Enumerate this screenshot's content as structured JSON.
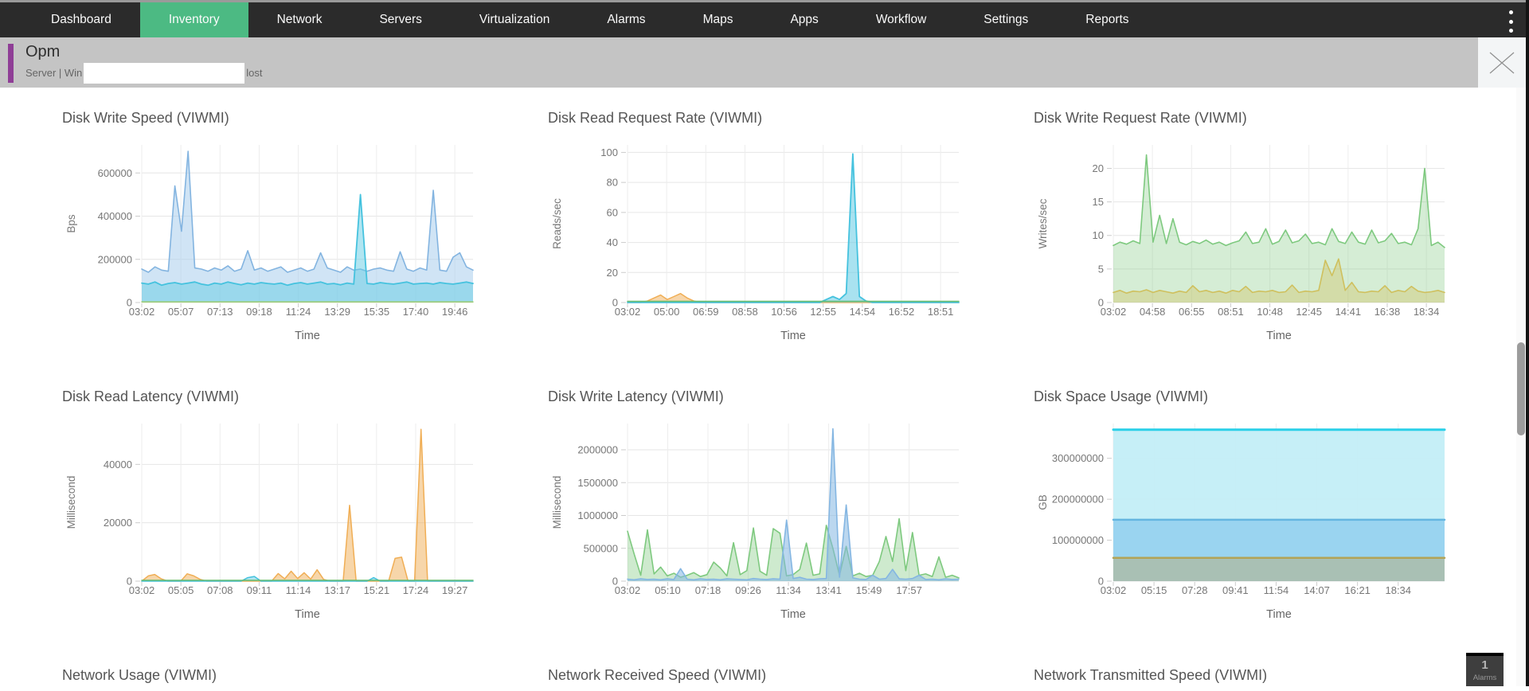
{
  "nav": {
    "items": [
      {
        "label": "Dashboard",
        "active": false
      },
      {
        "label": "Inventory",
        "active": true
      },
      {
        "label": "Network",
        "active": false
      },
      {
        "label": "Servers",
        "active": false
      },
      {
        "label": "Virtualization",
        "active": false
      },
      {
        "label": "Alarms",
        "active": false
      },
      {
        "label": "Maps",
        "active": false
      },
      {
        "label": "Apps",
        "active": false
      },
      {
        "label": "Workflow",
        "active": false
      },
      {
        "label": "Settings",
        "active": false
      },
      {
        "label": "Reports",
        "active": false
      }
    ],
    "menu_icon": "kebab-menu"
  },
  "header": {
    "title": "Opm",
    "subtitle_prefix": "Server | Win",
    "subtitle_suffix": "lost",
    "close_icon": "close",
    "accent_color": "#8f3e96",
    "bar_color": "#c4c4c4"
  },
  "alarms_badge": {
    "count": "1",
    "label": "Alarms"
  },
  "colors": {
    "nav_bg": "#2b2b2b",
    "nav_active": "#4cba83",
    "grid": "#e6e6e6",
    "axis_text": "#777777",
    "blue": "#83b4e0",
    "cyan": "#45c2de",
    "green": "#7ec97f",
    "olive": "#cfc05e",
    "orange": "#f0ae55",
    "space_cyan": "#2ad0e8",
    "space_blue": "#64b5e0",
    "space_gray": "#a9bfb2"
  },
  "chart_data": [
    {
      "type": "area",
      "title": "Disk Write Speed (VIWMI)",
      "xlabel": "Time",
      "ylabel": "Bps",
      "ymax": 730000,
      "tick_end": 0.945,
      "grid": true,
      "legend": "none",
      "yticks": [
        {
          "v": 0,
          "label": "0"
        },
        {
          "v": 200000,
          "label": "200000"
        },
        {
          "v": 400000,
          "label": "400000"
        },
        {
          "v": 600000,
          "label": "600000"
        }
      ],
      "xticks": [
        "03:02",
        "05:07",
        "07:13",
        "09:18",
        "11:24",
        "13:29",
        "15:35",
        "17:40",
        "19:46"
      ],
      "series": [
        {
          "name": "series-1",
          "color": "#83b4e0",
          "fill": "rgba(169,205,236,0.55)",
          "width": 1.6,
          "values": [
            155000,
            140000,
            165000,
            150000,
            145000,
            540000,
            330000,
            700000,
            160000,
            155000,
            145000,
            160000,
            150000,
            170000,
            145000,
            155000,
            240000,
            150000,
            160000,
            145000,
            155000,
            165000,
            140000,
            150000,
            160000,
            145000,
            155000,
            230000,
            160000,
            150000,
            140000,
            165000,
            150000,
            155000,
            145000,
            155000,
            160000,
            150000,
            145000,
            235000,
            155000,
            145000,
            160000,
            150000,
            520000,
            150000,
            145000,
            210000,
            230000,
            165000,
            150000
          ]
        },
        {
          "name": "series-2",
          "color": "#45c2de",
          "fill": "rgba(99,203,228,0.5)",
          "width": 1.8,
          "values": [
            90000,
            85000,
            95000,
            80000,
            88000,
            92000,
            85000,
            90000,
            95000,
            85000,
            80000,
            90000,
            85000,
            95000,
            88000,
            82000,
            90000,
            85000,
            92000,
            88000,
            85000,
            90000,
            80000,
            88000,
            92000,
            85000,
            90000,
            95000,
            85000,
            88000,
            82000,
            90000,
            85000,
            500000,
            88000,
            85000,
            92000,
            88000,
            85000,
            90000,
            95000,
            85000,
            88000,
            90000,
            85000,
            92000,
            88000,
            85000,
            90000,
            95000,
            88000
          ]
        },
        {
          "name": "series-3",
          "color": "#9ccc65",
          "width": 1.4,
          "flat": 3000
        }
      ]
    },
    {
      "type": "area",
      "title": "Disk Read Request Rate (VIWMI)",
      "xlabel": "Time",
      "ylabel": "Reads/sec",
      "ymax": 105,
      "tick_end": 0.945,
      "grid": true,
      "legend": "none",
      "yticks": [
        {
          "v": 0,
          "label": "0"
        },
        {
          "v": 20,
          "label": "20"
        },
        {
          "v": 40,
          "label": "40"
        },
        {
          "v": 60,
          "label": "60"
        },
        {
          "v": 80,
          "label": "80"
        },
        {
          "v": 100,
          "label": "100"
        }
      ],
      "xticks": [
        "03:02",
        "05:00",
        "06:59",
        "08:58",
        "10:56",
        "12:55",
        "14:54",
        "16:52",
        "18:51"
      ],
      "series": [
        {
          "name": "series-1",
          "color": "#f0ae55",
          "fill": "rgba(240,174,85,0.5)",
          "width": 1.5,
          "values": [
            0,
            0,
            0,
            1,
            3,
            5,
            2,
            4,
            6,
            3,
            1,
            0,
            0,
            0,
            0,
            0,
            0,
            0,
            0,
            0,
            0,
            0,
            0,
            0,
            0,
            0,
            0,
            0,
            0,
            0,
            0,
            0,
            0,
            0,
            0,
            0,
            0,
            0,
            0,
            0,
            0,
            0,
            0,
            0,
            0,
            0,
            0,
            0,
            0,
            0,
            0
          ]
        },
        {
          "name": "series-2",
          "color": "#45c2de",
          "fill": "rgba(99,203,228,0.55)",
          "width": 1.8,
          "values": [
            0,
            0,
            0,
            0,
            0,
            0,
            0,
            0,
            0,
            0,
            0,
            0,
            0,
            0,
            0,
            0,
            0,
            0,
            0,
            0,
            0,
            0,
            0,
            0,
            0,
            0,
            0,
            0,
            0,
            0,
            2,
            4,
            2,
            6,
            99,
            4,
            1,
            0,
            0,
            0,
            0,
            0,
            0,
            0,
            0,
            0,
            0,
            0,
            0,
            0,
            0
          ]
        },
        {
          "name": "series-3",
          "color": "#66bb6a",
          "width": 1.4,
          "flat": 0.8
        }
      ]
    },
    {
      "type": "area",
      "title": "Disk Write Request Rate (VIWMI)",
      "xlabel": "Time",
      "ylabel": "Writes/sec",
      "ymax": 23.5,
      "tick_end": 0.945,
      "grid": true,
      "legend": "none",
      "yticks": [
        {
          "v": 0,
          "label": "0"
        },
        {
          "v": 5,
          "label": "5"
        },
        {
          "v": 10,
          "label": "10"
        },
        {
          "v": 15,
          "label": "15"
        },
        {
          "v": 20,
          "label": "20"
        }
      ],
      "xticks": [
        "03:02",
        "04:58",
        "06:55",
        "08:51",
        "10:48",
        "12:45",
        "14:41",
        "16:38",
        "18:34"
      ],
      "series": [
        {
          "name": "series-1",
          "color": "#7ec97f",
          "fill": "rgba(126,201,127,0.33)",
          "width": 1.6,
          "values": [
            8.5,
            9,
            8.7,
            9.2,
            8.8,
            22,
            9,
            13,
            8.8,
            12.5,
            9,
            8.6,
            9.1,
            8.8,
            9.3,
            8.7,
            9,
            8.5,
            8.9,
            9.2,
            10.5,
            8.8,
            9,
            11,
            8.7,
            9.1,
            10.8,
            8.9,
            9.2,
            10.2,
            8.8,
            9,
            8.6,
            11,
            9.1,
            8.8,
            10.5,
            9,
            8.7,
            10.8,
            8.9,
            9.2,
            10.3,
            8.8,
            9,
            8.6,
            11,
            20,
            8.5,
            9,
            8.2
          ]
        },
        {
          "name": "series-2",
          "color": "#cfc05e",
          "fill": "rgba(207,192,94,0.38)",
          "width": 1.6,
          "values": [
            1.5,
            1.8,
            1.4,
            1.7,
            1.6,
            1.9,
            1.5,
            1.8,
            1.6,
            1.4,
            1.7,
            1.5,
            2.5,
            1.6,
            1.8,
            1.5,
            1.7,
            1.4,
            1.8,
            1.6,
            2.4,
            1.5,
            1.7,
            1.6,
            1.8,
            1.5,
            1.6,
            2.6,
            1.5,
            1.7,
            1.6,
            1.8,
            6.3,
            4,
            6.5,
            1.8,
            3,
            1.6,
            1.5,
            1.7,
            1.6,
            2.5,
            1.5,
            1.8,
            1.6,
            2.4,
            1.7,
            1.5,
            1.6,
            1.8,
            1.5
          ]
        }
      ]
    },
    {
      "type": "area",
      "title": "Disk Read Latency (VIWMI)",
      "xlabel": "Time",
      "ylabel": "Millisecond",
      "ymax": 54000,
      "tick_end": 0.945,
      "grid": true,
      "legend": "none",
      "yticks": [
        {
          "v": 0,
          "label": "0"
        },
        {
          "v": 20000,
          "label": "20000"
        },
        {
          "v": 40000,
          "label": "40000"
        }
      ],
      "xticks": [
        "03:02",
        "05:05",
        "07:08",
        "09:11",
        "11:14",
        "13:17",
        "15:21",
        "17:24",
        "19:27"
      ],
      "series": [
        {
          "name": "series-1",
          "color": "#f0ae55",
          "fill": "rgba(240,174,85,0.5)",
          "width": 1.5,
          "values": [
            0,
            1800,
            2300,
            800,
            0,
            0,
            0,
            2500,
            1800,
            600,
            0,
            0,
            0,
            0,
            0,
            0,
            0,
            0,
            0,
            0,
            0,
            2600,
            800,
            3400,
            900,
            2900,
            700,
            3900,
            600,
            0,
            0,
            0,
            26000,
            0,
            0,
            0,
            0,
            0,
            0,
            7800,
            8200,
            0,
            0,
            52000,
            0,
            0,
            0,
            0,
            0,
            0,
            0,
            0
          ]
        },
        {
          "name": "series-2",
          "color": "#45c2de",
          "fill": "rgba(99,203,228,0.5)",
          "width": 1.5,
          "values": [
            0,
            0,
            0,
            0,
            0,
            0,
            0,
            0,
            0,
            0,
            0,
            0,
            0,
            0,
            0,
            0,
            1200,
            1600,
            0,
            0,
            0,
            0,
            0,
            0,
            0,
            0,
            0,
            0,
            0,
            0,
            0,
            0,
            0,
            0,
            0,
            1200,
            0,
            0,
            0,
            0,
            0,
            0,
            0,
            0,
            0,
            0,
            0,
            0,
            0,
            0,
            0
          ]
        },
        {
          "name": "series-3",
          "color": "#66bb6a",
          "width": 1.4,
          "flat": 300
        }
      ]
    },
    {
      "type": "area",
      "title": "Disk Write Latency (VIWMI)",
      "xlabel": "Time",
      "ylabel": "Millisecond",
      "ymax": 2400000,
      "tick_end": 0.85,
      "grid": true,
      "legend": "none",
      "yticks": [
        {
          "v": 0,
          "label": "0"
        },
        {
          "v": 500000,
          "label": "500000"
        },
        {
          "v": 1000000,
          "label": "1000000"
        },
        {
          "v": 1500000,
          "label": "1500000"
        },
        {
          "v": 2000000,
          "label": "2000000"
        }
      ],
      "xticks": [
        "03:02",
        "05:10",
        "07:18",
        "09:26",
        "11:34",
        "13:41",
        "15:49",
        "17:57"
      ],
      "series": [
        {
          "name": "series-1",
          "color": "#7ec97f",
          "fill": "rgba(126,201,127,0.38)",
          "width": 1.6,
          "values": [
            760000,
            415000,
            90000,
            780000,
            110000,
            215000,
            80000,
            120000,
            60000,
            90000,
            130000,
            70000,
            100000,
            290000,
            200000,
            80000,
            585000,
            100000,
            160000,
            810000,
            150000,
            90000,
            800000,
            730000,
            80000,
            100000,
            180000,
            580000,
            90000,
            110000,
            850000,
            500000,
            90000,
            530000,
            80000,
            120000,
            70000,
            90000,
            300000,
            680000,
            300000,
            950000,
            160000,
            740000,
            90000,
            110000,
            70000,
            370000,
            60000,
            90000,
            50000
          ]
        },
        {
          "name": "series-2",
          "color": "#84b6e2",
          "fill": "rgba(132,182,226,0.55)",
          "width": 1.6,
          "values": [
            30000,
            20000,
            35000,
            25000,
            30000,
            20000,
            35000,
            25000,
            190000,
            30000,
            20000,
            35000,
            25000,
            30000,
            20000,
            35000,
            30000,
            25000,
            20000,
            40000,
            30000,
            25000,
            35000,
            30000,
            930000,
            40000,
            60000,
            30000,
            25000,
            35000,
            40000,
            2320000,
            60000,
            1160000,
            50000,
            30000,
            25000,
            90000,
            30000,
            40000,
            180000,
            35000,
            30000,
            40000,
            90000,
            25000,
            30000,
            20000,
            35000,
            25000,
            30000
          ]
        }
      ]
    },
    {
      "type": "area",
      "title": "Disk Space Usage (VIWMI)",
      "xlabel": "Time",
      "ylabel": "GB",
      "ymax": 385000000,
      "tick_end": 0.86,
      "grid": true,
      "legend": "none",
      "yticks": [
        {
          "v": 0,
          "label": "0"
        },
        {
          "v": 100000000,
          "label": "100000000"
        },
        {
          "v": 200000000,
          "label": "200000000"
        },
        {
          "v": 300000000,
          "label": "300000000"
        }
      ],
      "xticks": [
        "03:02",
        "05:15",
        "07:28",
        "09:41",
        "11:54",
        "14:07",
        "16:21",
        "18:34"
      ],
      "series": [
        {
          "name": "total-capacity",
          "color": "#2ad0e8",
          "fill": "rgba(195,238,247,0.95)",
          "width": 3,
          "flat": 370000000
        },
        {
          "name": "band-mid",
          "color": "#64b5e0",
          "fill": "rgba(152,210,239,0.95)",
          "width": 2.5,
          "flat": 150000000
        },
        {
          "name": "band-low",
          "color": "#b3a356",
          "fill": "rgba(169,191,178,0.97)",
          "width": 2.5,
          "flat": 57000000
        }
      ]
    },
    {
      "type": "area",
      "title": "Network Usage (VIWMI)",
      "visible": "title-only"
    },
    {
      "type": "area",
      "title": "Network Received Speed (VIWMI)",
      "visible": "title-only"
    },
    {
      "type": "area",
      "title": "Network Transmitted Speed (VIWMI)",
      "visible": "title-only"
    }
  ]
}
